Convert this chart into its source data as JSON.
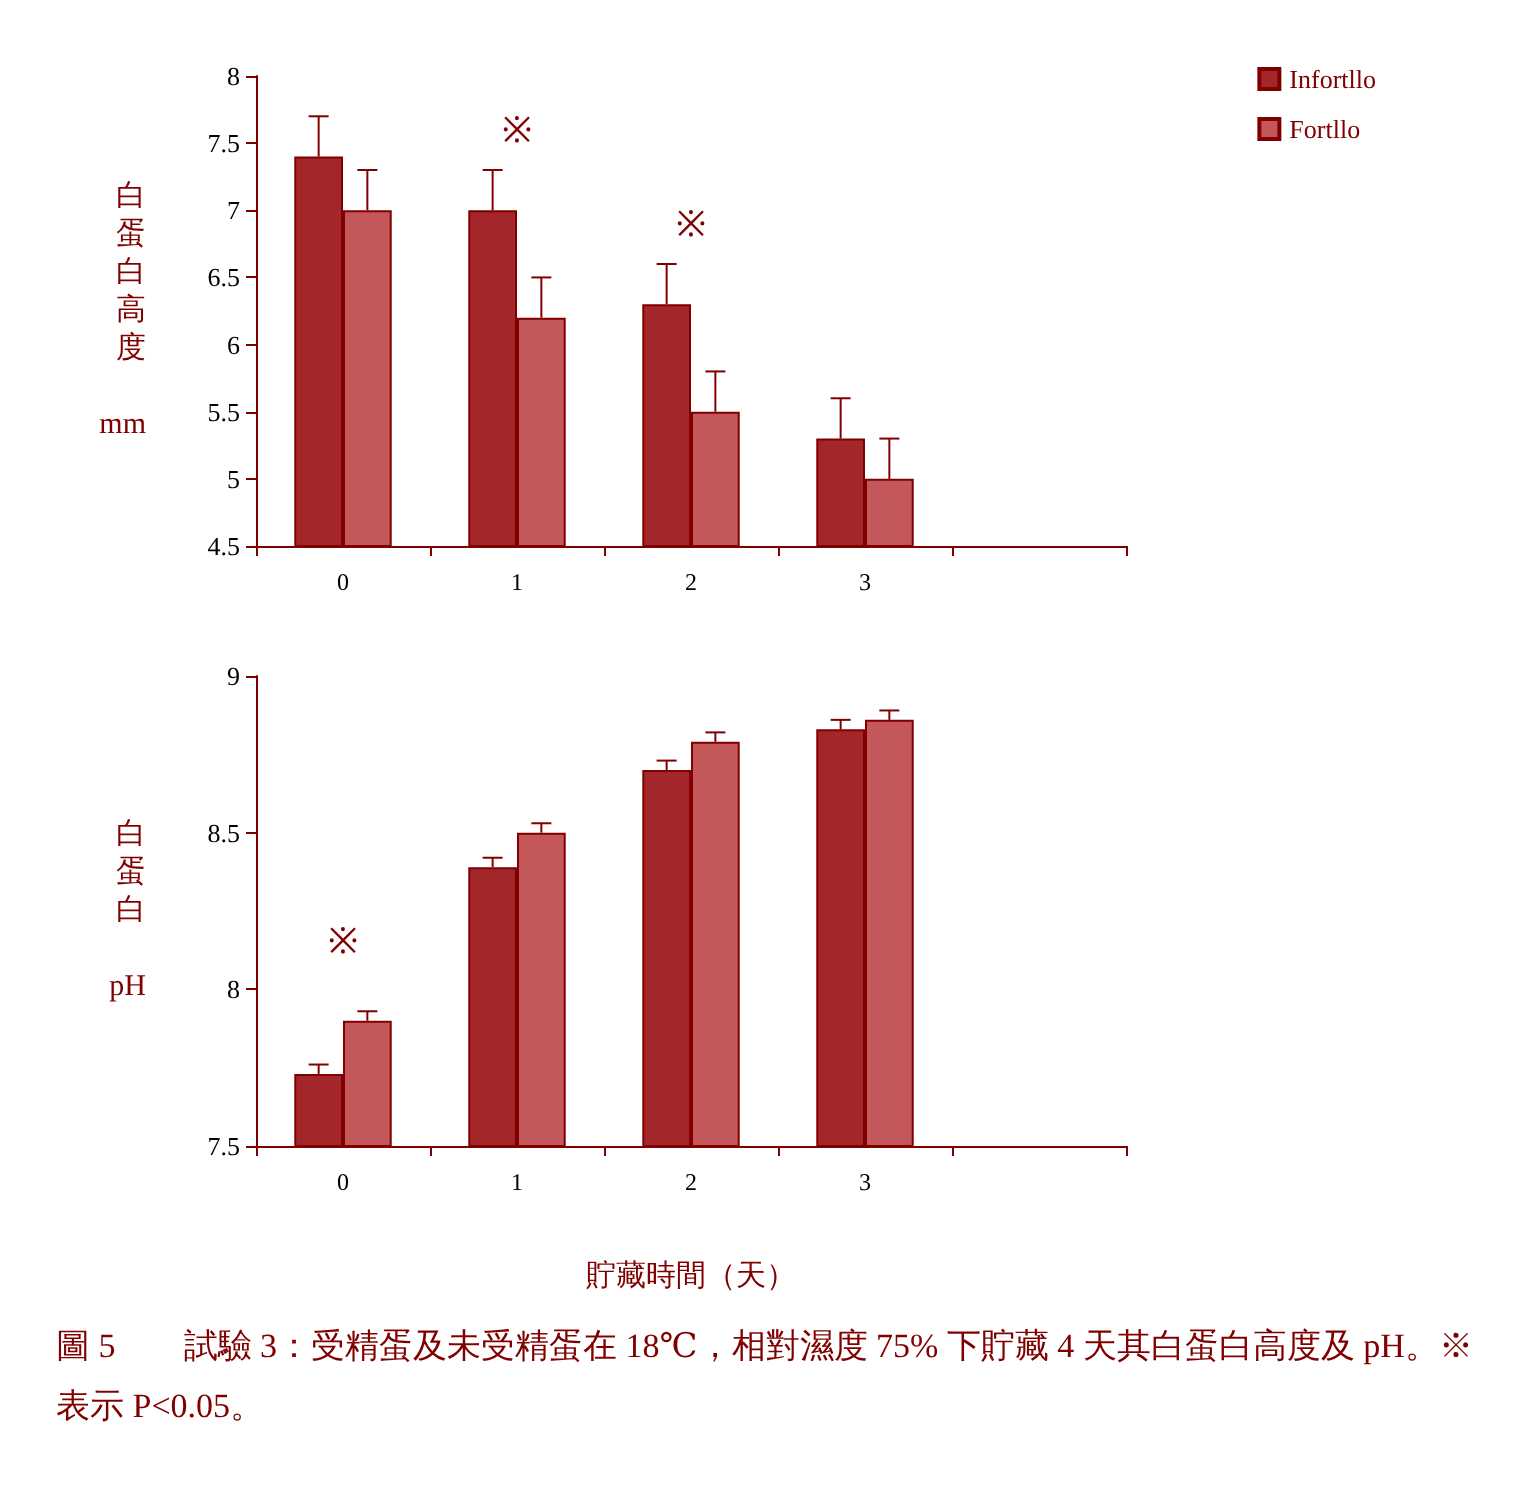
{
  "chart_data": [
    {
      "type": "bar",
      "ylabel": "白蛋白高度 mm",
      "categories": [
        "0",
        "1",
        "2",
        "3",
        null
      ],
      "ylim": [
        4.5,
        8
      ],
      "yticks": [
        4.5,
        5,
        5.5,
        6,
        6.5,
        7,
        7.5,
        8
      ],
      "grid": false,
      "legend": "top right",
      "series": [
        {
          "name": "Infortllo",
          "color": "#a3262a",
          "values": [
            7.4,
            7.0,
            6.3,
            5.3,
            null
          ],
          "errors": [
            0.3,
            0.3,
            0.3,
            0.3,
            null
          ]
        },
        {
          "name": "Fortllo",
          "color": "#c4575a",
          "values": [
            7.0,
            6.2,
            5.5,
            5.0,
            null
          ],
          "errors": [
            0.3,
            0.3,
            0.3,
            0.3,
            null
          ]
        }
      ],
      "annotations": [
        {
          "text": "※",
          "x": "1",
          "y": 7.0
        },
        {
          "text": "※",
          "x": "2",
          "y": 6.3
        }
      ]
    },
    {
      "type": "bar",
      "ylabel": "白蛋白 pH",
      "xlabel": "貯藏時間（天）",
      "categories": [
        "0",
        "1",
        "2",
        "3",
        null
      ],
      "ylim": [
        7.5,
        9
      ],
      "yticks": [
        7.5,
        8,
        8.5,
        9
      ],
      "grid": false,
      "legend": false,
      "series": [
        {
          "color": "#a3262a",
          "values": [
            7.73,
            8.39,
            8.7,
            8.83,
            null
          ],
          "errors": [
            0.03,
            0.03,
            0.03,
            0.03,
            null
          ]
        },
        {
          "color": "#c4575a",
          "values": [
            7.9,
            8.5,
            8.79,
            8.86,
            null
          ],
          "errors": [
            0.03,
            0.03,
            0.03,
            0.03,
            null
          ]
        }
      ],
      "annotations": [
        {
          "text": "※",
          "x": "0",
          "y": 7.9
        },
        "圖 5　　試驗 3：受精蛋及未受精蛋在 18℃，相對濕度 75% 下貯藏 4 天其白蛋白高度及 pH。※ 表示 P<0.05。"
      ]
    }
  ]
}
